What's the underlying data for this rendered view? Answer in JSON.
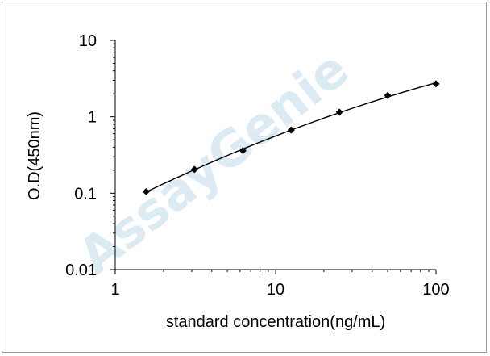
{
  "chart_data": {
    "type": "scatter",
    "title": "",
    "xlabel": "standard concentration(ng/mL)",
    "ylabel": "O.D(450nm)",
    "x_scale": "log",
    "y_scale": "log",
    "xlim": [
      1,
      100
    ],
    "ylim": [
      0.01,
      10
    ],
    "x_tick_labels": [
      "1",
      "10",
      "100"
    ],
    "y_tick_labels": [
      "10",
      "1",
      "0.1",
      "0.01"
    ],
    "grid": false,
    "legend": "none",
    "fit_line": true,
    "points": [
      {
        "x": 1.56,
        "y": 0.105
      },
      {
        "x": 3.12,
        "y": 0.205
      },
      {
        "x": 6.25,
        "y": 0.36
      },
      {
        "x": 12.5,
        "y": 0.67
      },
      {
        "x": 25,
        "y": 1.15
      },
      {
        "x": 50,
        "y": 1.9
      },
      {
        "x": 100,
        "y": 2.7
      }
    ],
    "colors": {
      "marker": "#000000",
      "line": "#000000",
      "axis": "#000000",
      "watermark": "#cfe3f0"
    }
  },
  "watermark": {
    "text": "AssayGenie"
  }
}
